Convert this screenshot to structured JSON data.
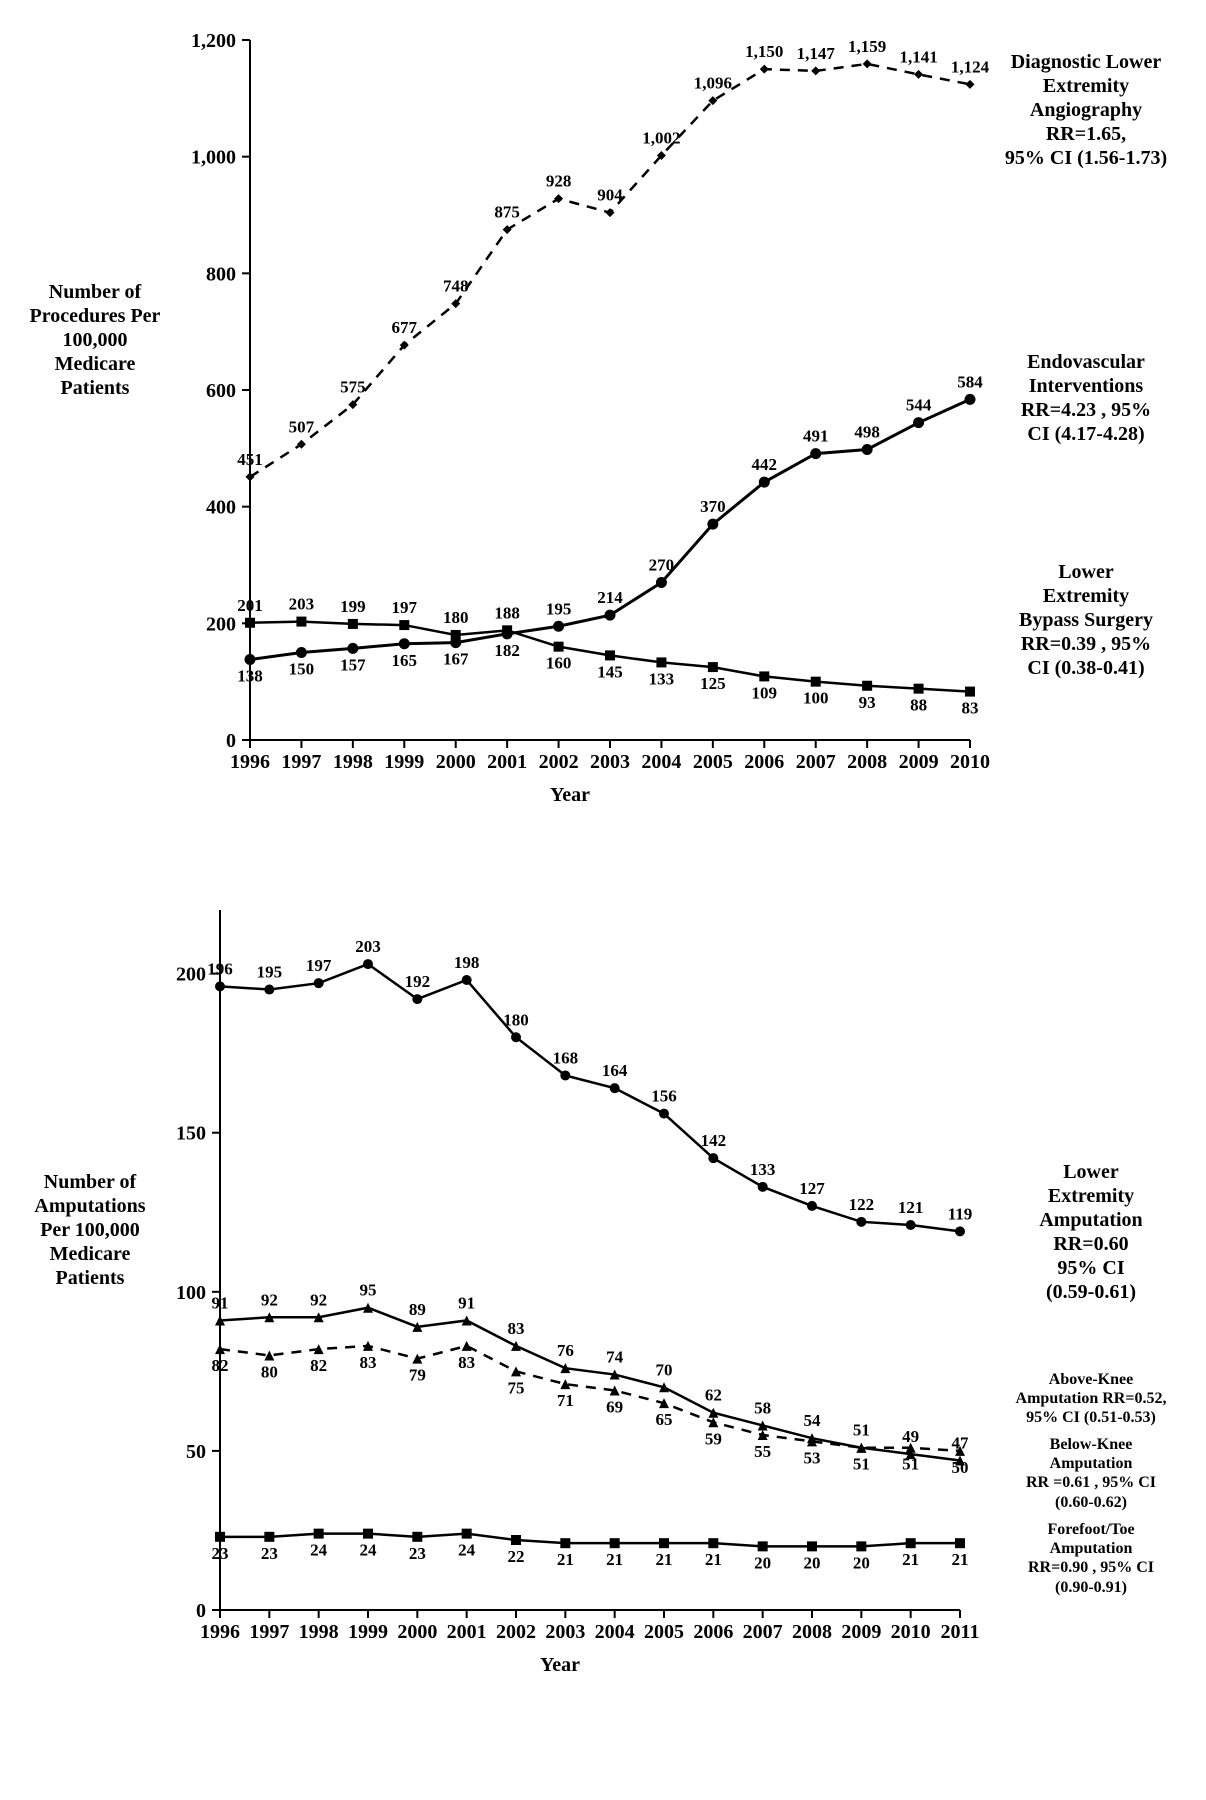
{
  "chart1": {
    "type": "line",
    "years": [
      1996,
      1997,
      1998,
      1999,
      2000,
      2001,
      2002,
      2003,
      2004,
      2005,
      2006,
      2007,
      2008,
      2009,
      2010
    ],
    "ylabel": "Number of\nProcedures Per\n100,000\nMedicare\nPatients",
    "xlabel": "Year",
    "ylim": [
      0,
      1200
    ],
    "ytick_step": 200,
    "axis_color": "#000000",
    "background_color": "#ffffff",
    "axis_font_size": 20,
    "tick_font_size": 20,
    "data_label_font_size": 17,
    "series_label_font_size": 20,
    "font_weight": "bold",
    "series": {
      "angiography": {
        "values": [
          451,
          507,
          575,
          677,
          748,
          875,
          928,
          904,
          1002,
          1096,
          1150,
          1147,
          1159,
          1141,
          1124
        ],
        "label": "Diagnostic Lower\nExtremity\nAngiography\nRR=1.65,\n95% CI (1.56-1.73)",
        "color": "#000000",
        "line_style": "dashed",
        "line_width": 2.5,
        "marker": "diamond",
        "marker_size": 9
      },
      "endovascular": {
        "values": [
          138,
          150,
          157,
          165,
          167,
          182,
          195,
          214,
          270,
          370,
          442,
          491,
          498,
          544,
          584
        ],
        "label": "Endovascular\nInterventions\nRR=4.23 , 95%\nCI (4.17-4.28)",
        "color": "#000000",
        "line_style": "solid",
        "line_width": 3,
        "marker": "circle",
        "marker_size": 11
      },
      "bypass": {
        "values": [
          201,
          203,
          199,
          197,
          180,
          188,
          160,
          145,
          133,
          125,
          109,
          100,
          93,
          88,
          83
        ],
        "label": "Lower\nExtremity\nBypass Surgery\nRR=0.39 , 95%\nCI (0.38-0.41)",
        "color": "#000000",
        "line_style": "solid",
        "line_width": 2.5,
        "marker": "square",
        "marker_size": 10,
        "label_positions": [
          "above",
          "above",
          "above",
          "above",
          "above",
          "above",
          "below",
          "below",
          "below",
          "below",
          "below",
          "below",
          "below",
          "below",
          "below"
        ]
      }
    }
  },
  "chart2": {
    "type": "line",
    "years": [
      1996,
      1997,
      1998,
      1999,
      2000,
      2001,
      2002,
      2003,
      2004,
      2005,
      2006,
      2007,
      2008,
      2009,
      2010,
      2011
    ],
    "ylabel": "Number of\nAmputations\nPer 100,000\nMedicare\nPatients",
    "xlabel": "Year",
    "ylim": [
      0,
      220
    ],
    "yticks": [
      0,
      50,
      100,
      150,
      200
    ],
    "axis_color": "#000000",
    "background_color": "#ffffff",
    "axis_font_size": 20,
    "tick_font_size": 20,
    "data_label_font_size": 17,
    "series_label_font_size_large": 20,
    "series_label_font_size_small": 16,
    "font_weight": "bold",
    "series": {
      "lower_extremity": {
        "values": [
          196,
          195,
          197,
          203,
          192,
          198,
          180,
          168,
          164,
          156,
          142,
          133,
          127,
          122,
          121,
          119
        ],
        "label": "Lower\nExtremity\nAmputation\nRR=0.60\n95% CI\n(0.59-0.61)",
        "color": "#000000",
        "line_style": "solid",
        "line_width": 2.5,
        "marker": "circle",
        "marker_size": 10
      },
      "above_knee": {
        "values": [
          91,
          92,
          92,
          95,
          89,
          91,
          83,
          76,
          74,
          70,
          62,
          58,
          54,
          51,
          49,
          47
        ],
        "label": "Above-Knee\nAmputation RR=0.52,\n95% CI (0.51-0.53)",
        "color": "#000000",
        "line_style": "solid",
        "line_width": 2.5,
        "marker": "triangle",
        "marker_size": 10
      },
      "below_knee": {
        "values": [
          82,
          80,
          82,
          83,
          79,
          83,
          75,
          71,
          69,
          65,
          59,
          55,
          53,
          51,
          51,
          50
        ],
        "label": "Below-Knee\nAmputation\nRR =0.61 , 95% CI\n(0.60-0.62)",
        "color": "#000000",
        "line_style": "dashed",
        "line_width": 2.5,
        "marker": "triangle",
        "marker_size": 10,
        "label_position": "below"
      },
      "forefoot": {
        "values": [
          23,
          23,
          24,
          24,
          23,
          24,
          22,
          21,
          21,
          21,
          21,
          20,
          20,
          20,
          21,
          21
        ],
        "label": "Forefoot/Toe\nAmputation\nRR=0.90 , 95% CI\n(0.90-0.91)",
        "color": "#000000",
        "line_style": "solid",
        "line_width": 2.5,
        "marker": "square",
        "marker_size": 10,
        "label_position": "below"
      }
    }
  }
}
